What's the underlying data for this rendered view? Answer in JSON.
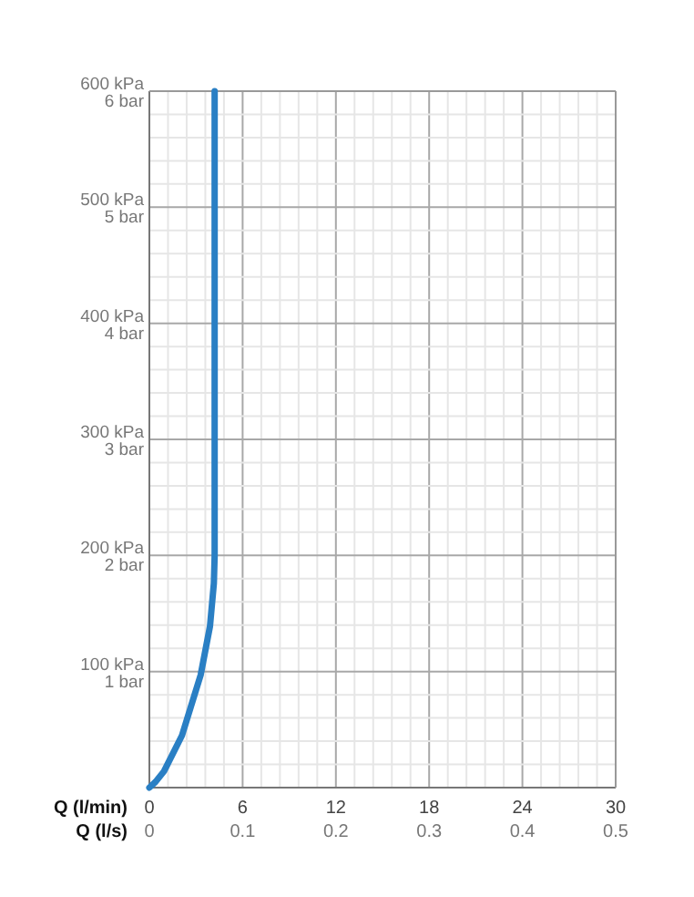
{
  "chart_data": {
    "type": "line",
    "xlabel": "Q (l/min)",
    "x2label": "Q (l/s)",
    "x": [
      0,
      0.4,
      0.94,
      2.1,
      3.3,
      3.9,
      4.15,
      4.2,
      4.2
    ],
    "series": [
      {
        "color": "#2a7fc4",
        "values": [
          0,
          5,
          14,
          45,
          97,
          139,
          176,
          200,
          600
        ]
      }
    ],
    "xlim": [
      0,
      30
    ],
    "ylim": [
      0,
      600
    ],
    "x2lim": [
      0,
      0.5
    ],
    "y2lim": [
      0,
      6
    ],
    "xticks": [
      0,
      {
        "value": 1.2,
        "label": null
      },
      {
        "value": 2.4,
        "label": null
      },
      {
        "value": 3.6,
        "label": null
      },
      {
        "value": 4.8,
        "label": null
      },
      6,
      {
        "value": 7.2,
        "label": null
      },
      {
        "value": 8.4,
        "label": null
      },
      {
        "value": 9.6,
        "label": null
      },
      {
        "value": 10.8,
        "label": null
      },
      12,
      {
        "value": 13.2,
        "label": null
      },
      {
        "value": 14.4,
        "label": null
      },
      {
        "value": 15.6,
        "label": null
      },
      {
        "value": 16.8,
        "label": null
      },
      18,
      {
        "value": 19.2,
        "label": null
      },
      {
        "value": 20.4,
        "label": null
      },
      {
        "value": 21.6,
        "label": null
      },
      {
        "value": 22.8,
        "label": null
      },
      24,
      {
        "value": 25.2,
        "label": null
      },
      {
        "value": 26.4,
        "label": null
      },
      {
        "value": 27.6,
        "label": null
      },
      {
        "value": 28.8,
        "label": null
      },
      30
    ],
    "x2ticks": [
      0,
      0.1,
      0.2,
      0.3,
      0.4,
      0.5
    ],
    "yticks": [
      {
        "value": 0,
        "label": null
      },
      {
        "value": 20,
        "label": null
      },
      {
        "value": 40,
        "label": null
      },
      {
        "value": 60,
        "label": null
      },
      {
        "value": 80,
        "label": null
      },
      {
        "value": 100,
        "label": "100 kPa"
      },
      {
        "value": 120,
        "label": null
      },
      {
        "value": 140,
        "label": null
      },
      {
        "value": 160,
        "label": null
      },
      {
        "value": 180,
        "label": null
      },
      {
        "value": 200,
        "label": "200 kPa"
      },
      {
        "value": 220,
        "label": null
      },
      {
        "value": 240,
        "label": null
      },
      {
        "value": 260,
        "label": null
      },
      {
        "value": 280,
        "label": null
      },
      {
        "value": 300,
        "label": "300 kPa"
      },
      {
        "value": 320,
        "label": null
      },
      {
        "value": 340,
        "label": null
      },
      {
        "value": 360,
        "label": null
      },
      {
        "value": 380,
        "label": null
      },
      {
        "value": 400,
        "label": "400 kPa"
      },
      {
        "value": 420,
        "label": null
      },
      {
        "value": 440,
        "label": null
      },
      {
        "value": 460,
        "label": null
      },
      {
        "value": 480,
        "label": null
      },
      {
        "value": 500,
        "label": "500 kPa"
      },
      {
        "value": 520,
        "label": null
      },
      {
        "value": 540,
        "label": null
      },
      {
        "value": 560,
        "label": null
      },
      {
        "value": 580,
        "label": null
      },
      {
        "value": 600,
        "label": "600 kPa"
      }
    ],
    "y2ticks": [
      {
        "value": 1,
        "label": "1 bar"
      },
      {
        "value": 2,
        "label": "2 bar"
      },
      {
        "value": 3,
        "label": "3 bar"
      },
      {
        "value": 4,
        "label": "4 bar"
      },
      {
        "value": 5,
        "label": "5 bar"
      },
      {
        "value": 6,
        "label": "6 bar"
      }
    ],
    "grid": true,
    "line_style": "solid",
    "marker": "none"
  }
}
